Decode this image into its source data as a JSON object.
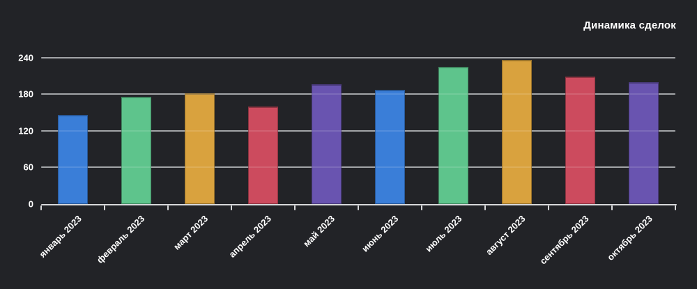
{
  "page": {
    "background": "#222327"
  },
  "chart_data": {
    "type": "bar",
    "title": "Динамика сделок",
    "categories": [
      "январь 2023",
      "февраль 2023",
      "март 2023",
      "апрель 2023",
      "май 2023",
      "июнь 2023",
      "июль 2023",
      "август 2023",
      "сентябрь 2023",
      "октябрь 2023"
    ],
    "values": [
      146,
      176,
      181,
      160,
      196,
      187,
      225,
      236,
      209,
      200
    ],
    "bar_colors": [
      "#3A7ED8",
      "#5EC48C",
      "#D9A23E",
      "#CC4B5E",
      "#6954B0",
      "#3A7ED8",
      "#5EC48C",
      "#D9A23E",
      "#CC4B5E",
      "#6954B0"
    ],
    "xlabel": "",
    "ylabel": "",
    "ylim": [
      0,
      240
    ],
    "yticks": [
      0,
      60,
      120,
      180,
      240
    ],
    "grid": true,
    "legend_position": "none",
    "x_tick_rotation_deg": -45,
    "colors": {
      "gridline": "#96989C",
      "axis": "#D8D9DB",
      "text": "#FFFFFF"
    }
  }
}
